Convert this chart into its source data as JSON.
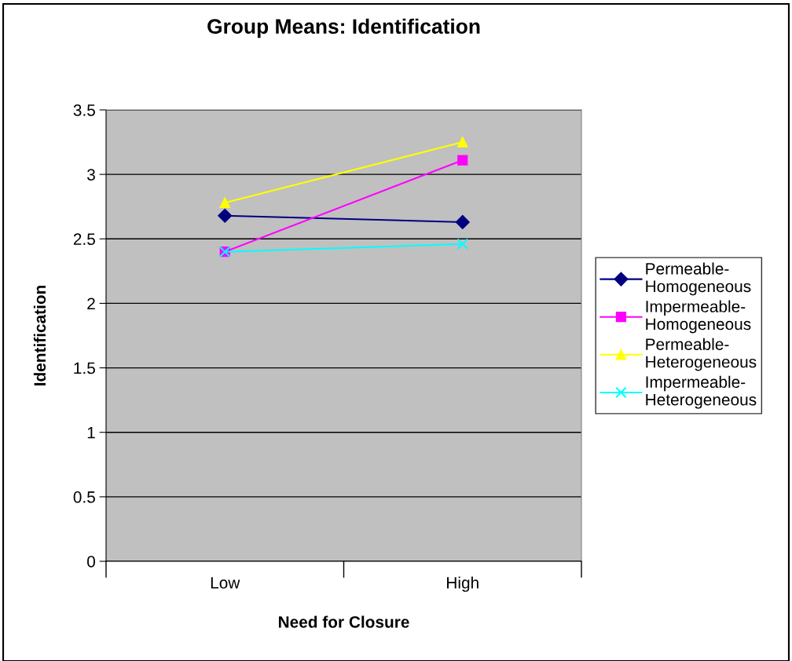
{
  "chart_data": {
    "type": "line",
    "title": "Group Means: Identification",
    "xlabel": "Need for Closure",
    "ylabel": "Identification",
    "categories": [
      "Low",
      "High"
    ],
    "series": [
      {
        "name": "Permeable-Homogeneous",
        "color": "#000080",
        "marker": "diamond",
        "values": [
          2.68,
          2.63
        ]
      },
      {
        "name": "Impermeable-Homogeneous",
        "color": "#ff00ff",
        "marker": "square",
        "values": [
          2.4,
          3.11
        ]
      },
      {
        "name": "Permeable-Heterogeneous",
        "color": "#ffff00",
        "marker": "triangle",
        "values": [
          2.78,
          3.25
        ]
      },
      {
        "name": "Impermeable-Heterogeneous",
        "color": "#00ffff",
        "marker": "cross",
        "values": [
          2.4,
          2.46
        ]
      }
    ],
    "ylim": [
      0,
      3.5
    ],
    "yticks": [
      0,
      0.5,
      1,
      1.5,
      2,
      2.5,
      3,
      3.5
    ],
    "grid": "y",
    "legend": "right",
    "line_style": "solid"
  }
}
